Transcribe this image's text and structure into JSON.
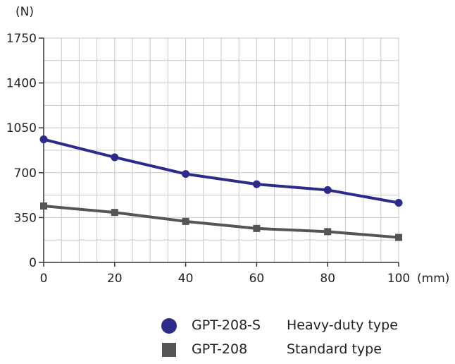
{
  "chart_data": {
    "type": "line",
    "y_unit": "(N)",
    "x_unit": "(mm)",
    "x": [
      0,
      20,
      40,
      60,
      80,
      100
    ],
    "x_ticks": [
      "0",
      "20",
      "40",
      "60",
      "80",
      "100"
    ],
    "y_ticks": [
      "0",
      "350",
      "700",
      "1050",
      "1400",
      "1750"
    ],
    "xlim": [
      0,
      100
    ],
    "ylim": [
      0,
      1750
    ],
    "grid": true,
    "series": [
      {
        "name": "GPT-208-S",
        "values": [
          960,
          820,
          690,
          610,
          565,
          465
        ],
        "color": "#2e2a8c",
        "marker": "circle"
      },
      {
        "name": "GPT-208",
        "values": [
          440,
          390,
          320,
          265,
          240,
          195
        ],
        "color": "#555555",
        "marker": "square"
      }
    ],
    "legend": [
      {
        "name": "GPT-208-S",
        "description": "Heavy-duty type",
        "color": "#2e2a8c",
        "marker": "circle"
      },
      {
        "name": "GPT-208",
        "description": "Standard type",
        "color": "#555555",
        "marker": "square"
      }
    ]
  }
}
